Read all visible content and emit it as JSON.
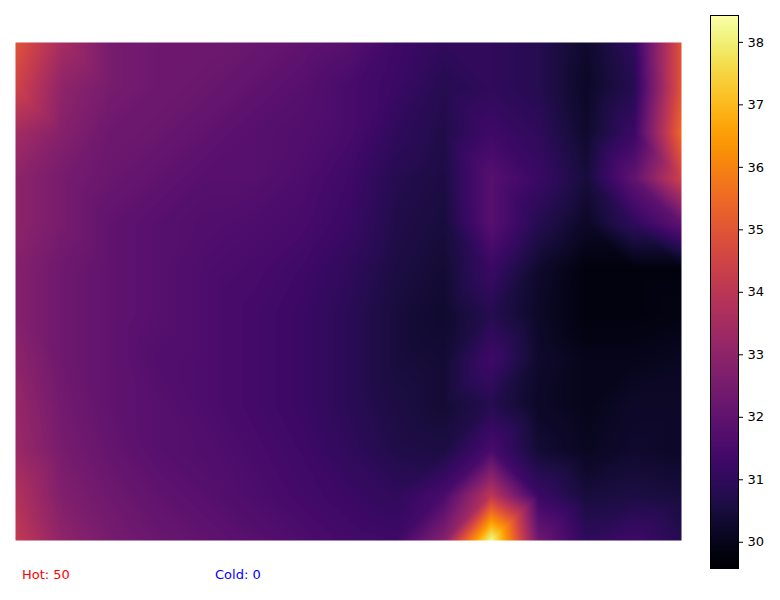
{
  "chart_data": {
    "type": "heatmap",
    "color": "inferno",
    "tick_labels": false,
    "cells": [
      [
        35,
        33.5,
        32.5,
        32.3,
        32.3,
        32.2,
        32,
        31.8,
        31.3,
        31,
        31,
        30.8,
        30.3,
        31,
        35
      ],
      [
        34.5,
        33,
        32.5,
        32.3,
        32.2,
        32,
        31.8,
        31.5,
        31.2,
        30.8,
        31,
        30.8,
        30.2,
        30.8,
        35
      ],
      [
        33.5,
        32.8,
        32.3,
        32.2,
        32,
        31.8,
        31.7,
        31.5,
        31,
        30.7,
        31.3,
        31,
        30.3,
        31.2,
        35.5
      ],
      [
        33,
        32.5,
        32.2,
        32,
        31.8,
        31.8,
        31.6,
        31.3,
        30.8,
        30.6,
        31.8,
        31.2,
        30.5,
        32,
        34.5
      ],
      [
        33,
        32.5,
        32,
        31.8,
        31.7,
        31.6,
        31.5,
        31.2,
        30.7,
        30.5,
        31.8,
        30.8,
        30.2,
        31,
        32
      ],
      [
        32.8,
        32.3,
        32,
        31.8,
        31.6,
        31.5,
        31.3,
        31,
        30.6,
        30.4,
        31.2,
        30.3,
        29.8,
        29.8,
        29.8
      ],
      [
        32.8,
        32.3,
        32,
        31.8,
        31.6,
        31.4,
        31.2,
        30.9,
        30.5,
        30.3,
        30.8,
        30.2,
        29.8,
        29.8,
        29.9
      ],
      [
        33,
        32.3,
        32,
        31.7,
        31.6,
        31.4,
        31.2,
        30.9,
        30.5,
        30.4,
        31.3,
        30.3,
        30,
        30,
        30.1
      ],
      [
        33.2,
        32.4,
        32,
        31.8,
        31.6,
        31.4,
        31.2,
        30.9,
        30.6,
        30.4,
        30.8,
        30.2,
        30,
        30.2,
        30.2
      ],
      [
        33.3,
        32.5,
        32.1,
        31.8,
        31.7,
        31.5,
        31.3,
        31,
        30.7,
        30.6,
        31.5,
        30.4,
        30.1,
        30.3,
        30.2
      ],
      [
        33.8,
        32.7,
        32.3,
        32,
        31.8,
        31.6,
        31.4,
        31.2,
        31,
        31.5,
        34,
        31.2,
        30.5,
        30.6,
        30.5
      ],
      [
        34.2,
        33,
        32.5,
        32.2,
        32,
        31.8,
        31.6,
        31.4,
        31.3,
        32.8,
        38.3,
        32.3,
        31,
        31.3,
        30.8
      ]
    ],
    "colorbar": {
      "range": [
        29.58,
        38.43
      ],
      "ticks": [
        30,
        31,
        32,
        33,
        34,
        35,
        36,
        37,
        38
      ]
    },
    "annotations": [
      {
        "text": "Hot: 50",
        "color": "red"
      },
      {
        "text": "Cold: 0",
        "color": "blue"
      }
    ]
  }
}
